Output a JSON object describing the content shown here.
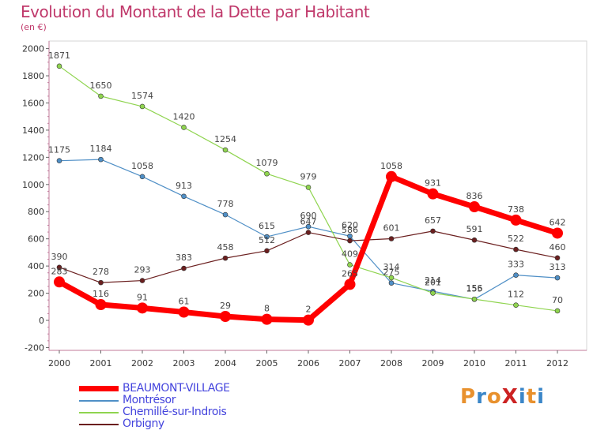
{
  "chart_data": {
    "type": "line",
    "title": "Evolution du Montant de la Dette par Habitant",
    "subtitle": "(en €)",
    "x": [
      "2000",
      "2001",
      "2002",
      "2003",
      "2004",
      "2005",
      "2006",
      "2007",
      "2008",
      "2009",
      "2010",
      "2011",
      "2012"
    ],
    "ylim": [
      -200,
      2000
    ],
    "yticks": [
      -200,
      0,
      200,
      400,
      600,
      800,
      1000,
      1200,
      1400,
      1600,
      1800,
      2000
    ],
    "grid": false,
    "legend_position": "bottom-left",
    "series": [
      {
        "name": "BEAUMONT-VILLAGE",
        "color": "#ff0000",
        "values": [
          283,
          116,
          91,
          61,
          29,
          8,
          2,
          265,
          1058,
          931,
          836,
          738,
          642
        ]
      },
      {
        "name": "Montrésor",
        "color": "#4f8fc6",
        "values": [
          1175,
          1184,
          1058,
          913,
          778,
          615,
          690,
          620,
          275,
          214,
          155,
          333,
          313
        ]
      },
      {
        "name": "Chemillé-sur-Indrois",
        "color": "#8fd44f",
        "values": [
          1871,
          1650,
          1574,
          1420,
          1254,
          1079,
          979,
          409,
          314,
          201,
          156,
          112,
          70
        ]
      },
      {
        "name": "Orbigny",
        "color": "#6b1f1f",
        "values": [
          390,
          278,
          293,
          383,
          458,
          512,
          647,
          586,
          601,
          657,
          591,
          522,
          460
        ]
      }
    ]
  },
  "legend": {
    "label_color": "#4444dd"
  },
  "logo": {
    "text": "ProXiti",
    "colors": [
      "#e8912e",
      "#3a86c8",
      "#e8912e",
      "#cc2222",
      "#3a86c8",
      "#e8912e",
      "#3a86c8"
    ]
  }
}
